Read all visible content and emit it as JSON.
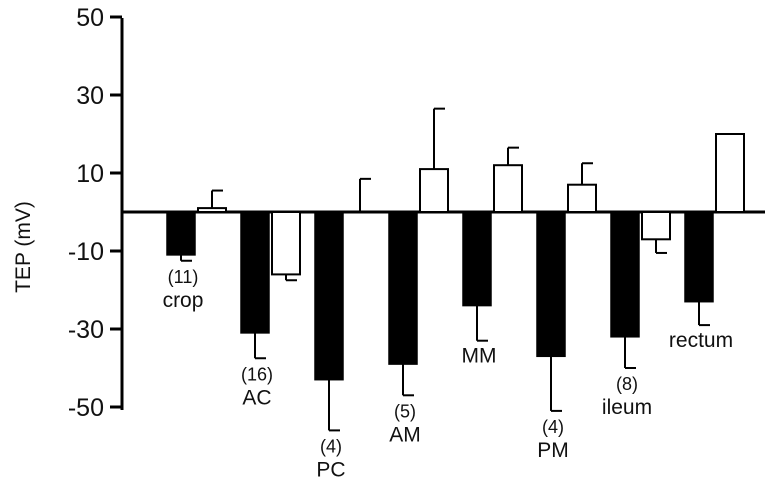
{
  "chart_data": {
    "type": "bar",
    "xlabel": "",
    "ylabel": "TEP (mV)",
    "ylim": [
      -50,
      50
    ],
    "yticks": [
      "50",
      "30",
      "10",
      "-10",
      "-30",
      "-50"
    ],
    "grid": false,
    "legend": "none",
    "colors": {
      "filled": "#000000",
      "open": "#ffffff",
      "stroke": "#000000"
    },
    "categories": [
      {
        "label": "crop",
        "n": "(11)",
        "filled": -11,
        "filled_err": 1.5,
        "open": 1,
        "open_err": 4.5
      },
      {
        "label": "AC",
        "n": "(16)",
        "filled": -31,
        "filled_err": 6.5,
        "open": -16,
        "open_err": 1.5
      },
      {
        "label": "PC",
        "n": "(4)",
        "filled": -43,
        "filled_err": 13,
        "open": 0,
        "open_err": 8.5
      },
      {
        "label": "AM",
        "n": "(5)",
        "filled": -39,
        "filled_err": 8,
        "open": 11,
        "open_err": 15.5
      },
      {
        "label": "MM",
        "n": "",
        "filled": -24,
        "filled_err": 9,
        "open": 12,
        "open_err": 4.5
      },
      {
        "label": "PM",
        "n": "(4)",
        "filled": -37,
        "filled_err": 14,
        "open": 7,
        "open_err": 5.5
      },
      {
        "label": "ileum",
        "n": "(8)",
        "filled": -32,
        "filled_err": 8,
        "open": -7,
        "open_err": 3.5
      },
      {
        "label": "rectum",
        "n": "",
        "filled": -23,
        "filled_err": 6,
        "open": 20,
        "open_err": 0
      }
    ]
  }
}
